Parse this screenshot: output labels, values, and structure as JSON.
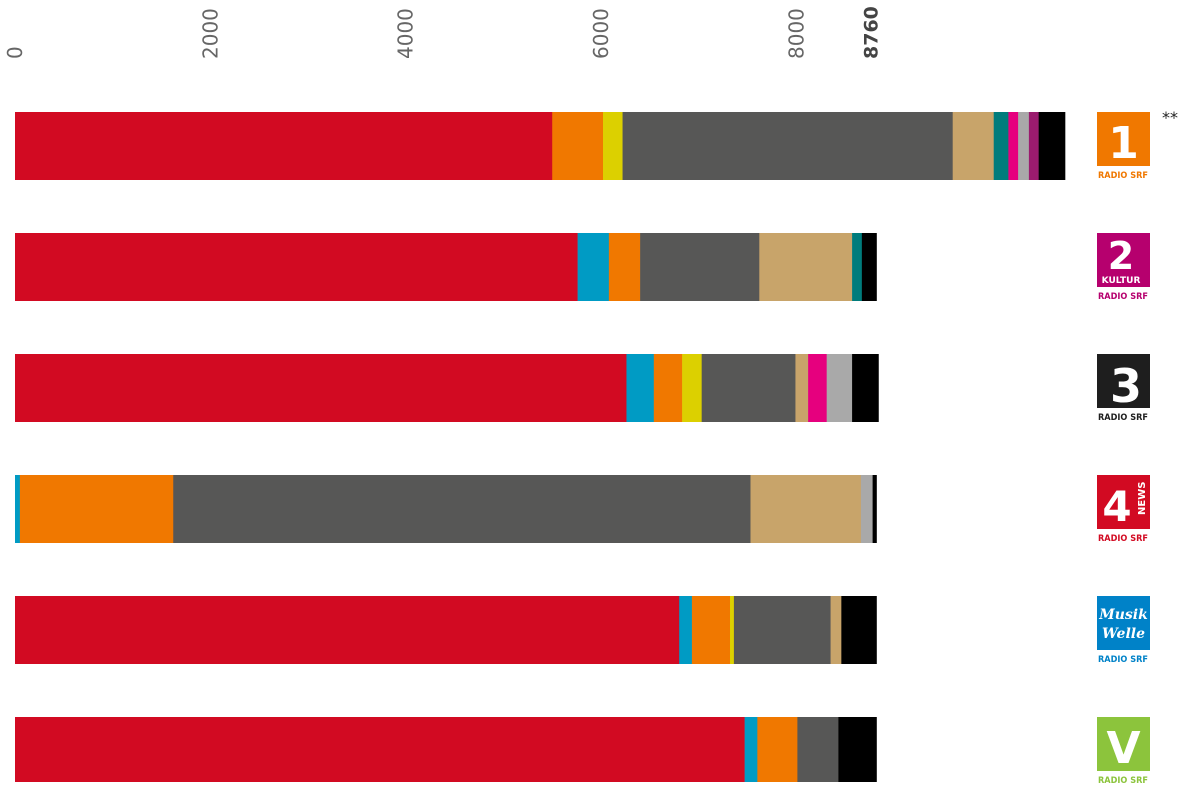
{
  "chart_data": {
    "type": "bar",
    "orientation": "horizontal",
    "stacked": true,
    "x_ticks": [
      0,
      2000,
      4000,
      6000,
      8000
    ],
    "x_max_marker": 8760,
    "xlim": [
      0,
      10760
    ],
    "grid": false,
    "legend": "none",
    "series_colors": [
      "#d20a22",
      "#009bc4",
      "#f07800",
      "#dcd000",
      "#575756",
      "#c8a46a",
      "#007c7c",
      "#e6007e",
      "#a9a9a9",
      "#9b1b6e",
      "#000000"
    ],
    "categories": [
      "Radio SRF 1",
      "Radio SRF 2 Kultur",
      "Radio SRF 3",
      "Radio SRF 4 News",
      "Radio SRF Musikwelle",
      "Radio SRF Virus"
    ],
    "bars": [
      {
        "segments": [
          {
            "value": 5500,
            "color": "#d20a22"
          },
          {
            "value": 520,
            "color": "#f07800"
          },
          {
            "value": 200,
            "color": "#dcd000"
          },
          {
            "value": 3380,
            "color": "#575756"
          },
          {
            "value": 420,
            "color": "#c8a46a"
          },
          {
            "value": 150,
            "color": "#007c7c"
          },
          {
            "value": 100,
            "color": "#e6007e"
          },
          {
            "value": 110,
            "color": "#a9a9a9"
          },
          {
            "value": 100,
            "color": "#9b1b6e"
          },
          {
            "value": 270,
            "color": "#000000"
          }
        ]
      },
      {
        "segments": [
          {
            "value": 5760,
            "color": "#d20a22"
          },
          {
            "value": 320,
            "color": "#009bc4"
          },
          {
            "value": 320,
            "color": "#f07800"
          },
          {
            "value": 1220,
            "color": "#575756"
          },
          {
            "value": 950,
            "color": "#c8a46a"
          },
          {
            "value": 100,
            "color": "#007c7c"
          },
          {
            "value": 150,
            "color": "#000000"
          }
        ]
      },
      {
        "segments": [
          {
            "value": 6260,
            "color": "#d20a22"
          },
          {
            "value": 280,
            "color": "#009bc4"
          },
          {
            "value": 290,
            "color": "#f07800"
          },
          {
            "value": 200,
            "color": "#dcd000"
          },
          {
            "value": 960,
            "color": "#575756"
          },
          {
            "value": 130,
            "color": "#c8a46a"
          },
          {
            "value": 190,
            "color": "#e6007e"
          },
          {
            "value": 260,
            "color": "#a9a9a9"
          },
          {
            "value": 270,
            "color": "#000000"
          }
        ]
      },
      {
        "segments": [
          {
            "value": 50,
            "color": "#009bc4"
          },
          {
            "value": 1570,
            "color": "#f07800"
          },
          {
            "value": 5910,
            "color": "#575756"
          },
          {
            "value": 1130,
            "color": "#c8a46a"
          },
          {
            "value": 120,
            "color": "#a9a9a9"
          },
          {
            "value": 40,
            "color": "#000000"
          }
        ]
      },
      {
        "segments": [
          {
            "value": 6800,
            "color": "#d20a22"
          },
          {
            "value": 130,
            "color": "#009bc4"
          },
          {
            "value": 390,
            "color": "#f07800"
          },
          {
            "value": 40,
            "color": "#dcd000"
          },
          {
            "value": 990,
            "color": "#575756"
          },
          {
            "value": 110,
            "color": "#c8a46a"
          },
          {
            "value": 360,
            "color": "#000000"
          }
        ]
      },
      {
        "segments": [
          {
            "value": 7470,
            "color": "#d20a22"
          },
          {
            "value": 130,
            "color": "#009bc4"
          },
          {
            "value": 410,
            "color": "#f07800"
          },
          {
            "value": 420,
            "color": "#575756"
          },
          {
            "value": 390,
            "color": "#000000"
          }
        ]
      }
    ],
    "logos": [
      {
        "number": "1",
        "text": "RADIO SRF",
        "color": "#f07800",
        "icon": "radio-srf-1-logo"
      },
      {
        "number": "2",
        "sub": "KULTUR",
        "text": "RADIO SRF",
        "color": "#b6006e",
        "icon": "radio-srf-2-kultur-logo"
      },
      {
        "number": "3",
        "text": "RADIO SRF",
        "color": "#1e1e1e",
        "icon": "radio-srf-3-logo"
      },
      {
        "number": "4",
        "sub": "NEWS",
        "text": "RADIO SRF",
        "color": "#d20a22",
        "icon": "radio-srf-4-news-logo"
      },
      {
        "line1": "Musik",
        "line2": "Welle",
        "text": "RADIO SRF",
        "color": "#0082c8",
        "icon": "radio-srf-musikwelle-logo"
      },
      {
        "number": "V",
        "text": "RADIO SRF",
        "color": "#8cc43c",
        "icon": "radio-srf-virus-logo"
      }
    ],
    "annotation": "**"
  }
}
